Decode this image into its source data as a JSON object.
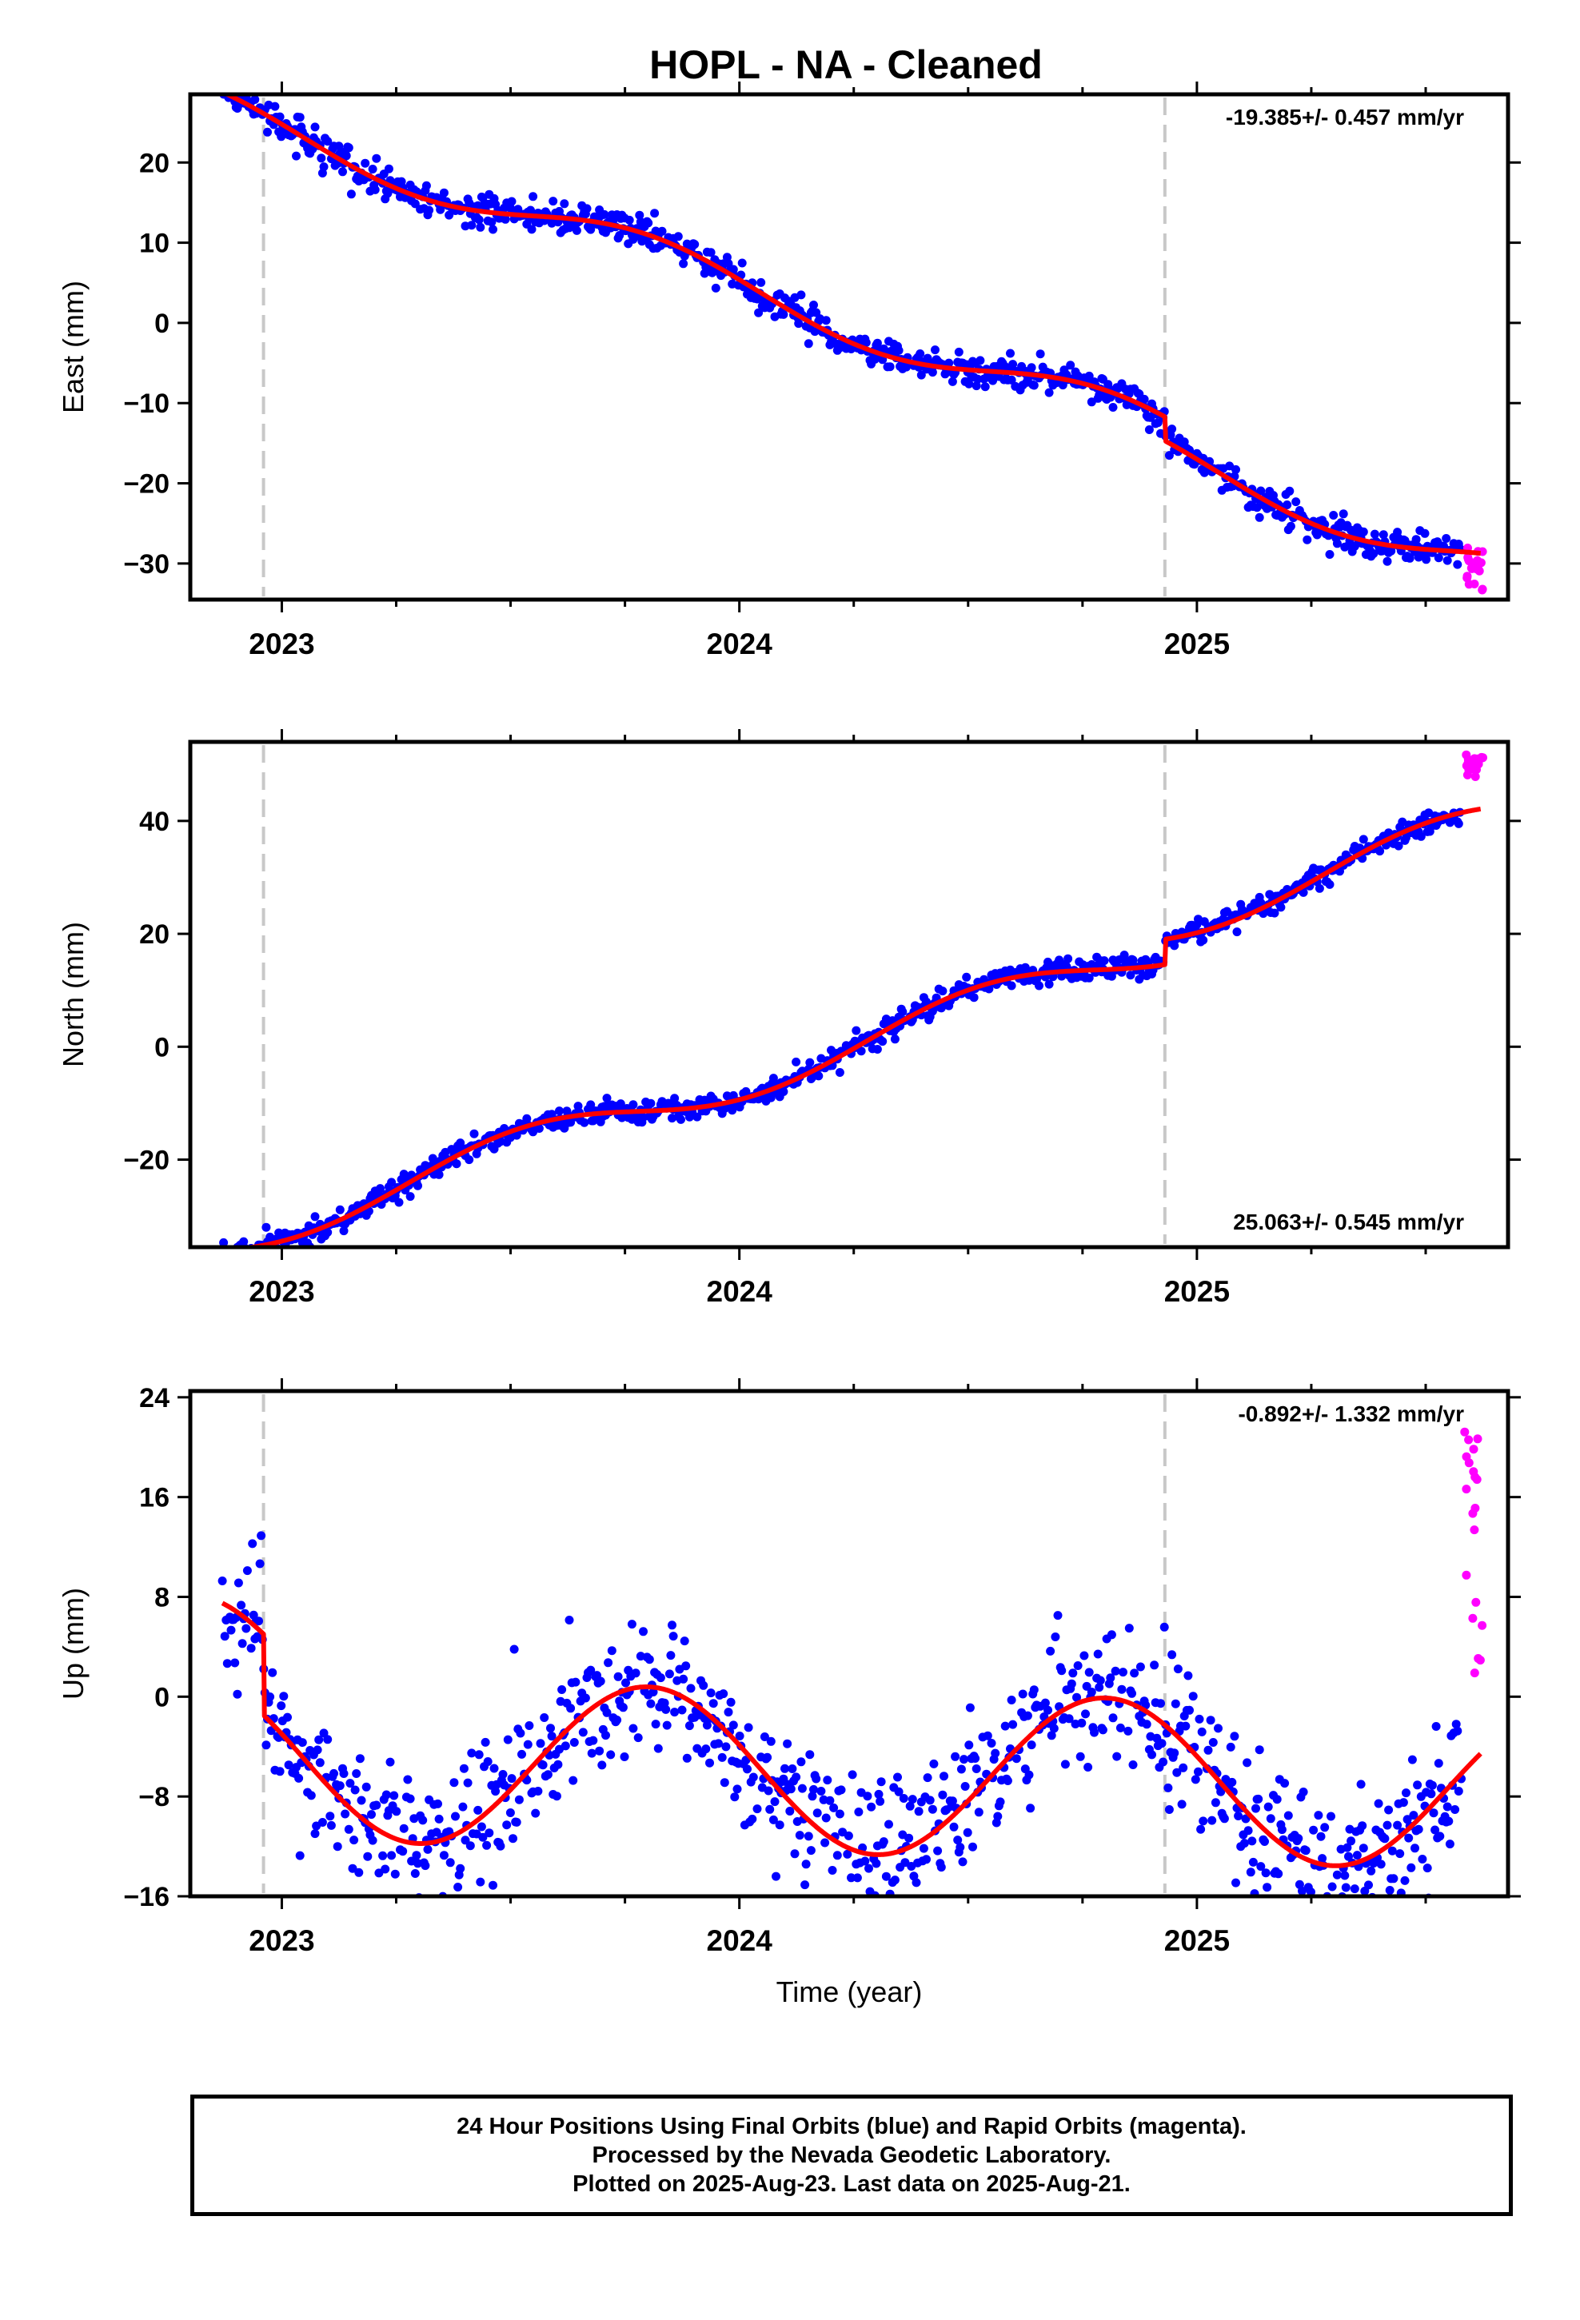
{
  "chart_data": [
    {
      "type": "scatter",
      "panel": "east",
      "title": "HOPL  - NA - Cleaned",
      "ylabel": "East (mm)",
      "xlabel": "",
      "xlim": [
        2022.8,
        2025.68
      ],
      "ylim": [
        -34.5,
        28.5
      ],
      "yticks": [
        -30,
        -20,
        -10,
        0,
        10,
        20
      ],
      "xticks": [
        "2023",
        "2024",
        "2025"
      ],
      "rate_label": "-19.385+/- 0.457 mm/yr",
      "rate_position": "top-right",
      "offset_lines_year": [
        2022.96,
        2024.93
      ],
      "series": [
        {
          "name": "Final Orbits",
          "color": "#0000ff",
          "style": "points"
        },
        {
          "name": "Rapid Orbits",
          "color": "#ff00ff",
          "style": "points"
        },
        {
          "name": "Model",
          "color": "#ff0000",
          "style": "line"
        }
      ],
      "trend": {
        "rate": -19.385,
        "intercept_2023": 24.0,
        "annual_amp": 2.5,
        "annual_phase": 0.55,
        "offset_year": 2024.93,
        "offset": -3.0,
        "noise": 1.0
      },
      "rapid_range": [
        2025.585,
        2025.625
      ],
      "rapid_values_range": [
        -33.5,
        -28.0
      ]
    },
    {
      "type": "scatter",
      "panel": "north",
      "title": "",
      "ylabel": "North (mm)",
      "xlabel": "",
      "xlim": [
        2022.8,
        2025.68
      ],
      "ylim": [
        -35.5,
        54
      ],
      "yticks": [
        -20,
        0,
        20,
        40
      ],
      "xticks": [
        "2023",
        "2024",
        "2025"
      ],
      "rate_label": "25.063+/- 0.545 mm/yr",
      "rate_position": "bottom-right",
      "offset_lines_year": [
        2022.96,
        2024.93
      ],
      "series": [
        {
          "name": "Final Orbits",
          "color": "#0000ff",
          "style": "points"
        },
        {
          "name": "Rapid Orbits",
          "color": "#ff00ff",
          "style": "points"
        },
        {
          "name": "Model",
          "color": "#ff0000",
          "style": "line"
        }
      ],
      "trend": {
        "rate": 25.063,
        "intercept_2023": -31.0,
        "annual_amp": 3.5,
        "annual_phase": 0.28,
        "offset_year": 2024.93,
        "offset": 4.5,
        "noise": 1.0
      },
      "rapid_range": [
        2025.585,
        2025.625
      ],
      "rapid_values_range": [
        47.5,
        53.0
      ]
    },
    {
      "type": "scatter",
      "panel": "up",
      "title": "",
      "ylabel": "Up (mm)",
      "xlabel": "Time (year)",
      "xlim": [
        2022.8,
        2025.68
      ],
      "ylim": [
        -16,
        24.5
      ],
      "yticks": [
        -16,
        -8,
        0,
        8,
        16,
        24
      ],
      "xticks": [
        "2023",
        "2024",
        "2025"
      ],
      "rate_label": "-0.892+/- 1.332 mm/yr",
      "rate_position": "top-right",
      "offset_lines_year": [
        2022.96,
        2024.93
      ],
      "series": [
        {
          "name": "Final Orbits",
          "color": "#0000ff",
          "style": "points"
        },
        {
          "name": "Rapid Orbits",
          "color": "#ff00ff",
          "style": "points"
        },
        {
          "name": "Model",
          "color": "#ff0000",
          "style": "line"
        }
      ],
      "trend": {
        "rate": -0.892,
        "intercept_2023": 1.5,
        "annual_amp": 6.5,
        "annual_phase": 0.55,
        "offset_year": 2022.96,
        "offset": -6.5,
        "noise": 2.8
      },
      "rapid_range": [
        2025.585,
        2025.625
      ],
      "rapid_values_range": [
        1.0,
        24.0
      ]
    }
  ],
  "footer": {
    "line1": "24 Hour Positions Using Final Orbits (blue) and Rapid Orbits (magenta).",
    "line2": "Processed by the Nevada Geodetic Laboratory.",
    "line3": "Plotted on 2025-Aug-23. Last data on 2025-Aug-21."
  }
}
